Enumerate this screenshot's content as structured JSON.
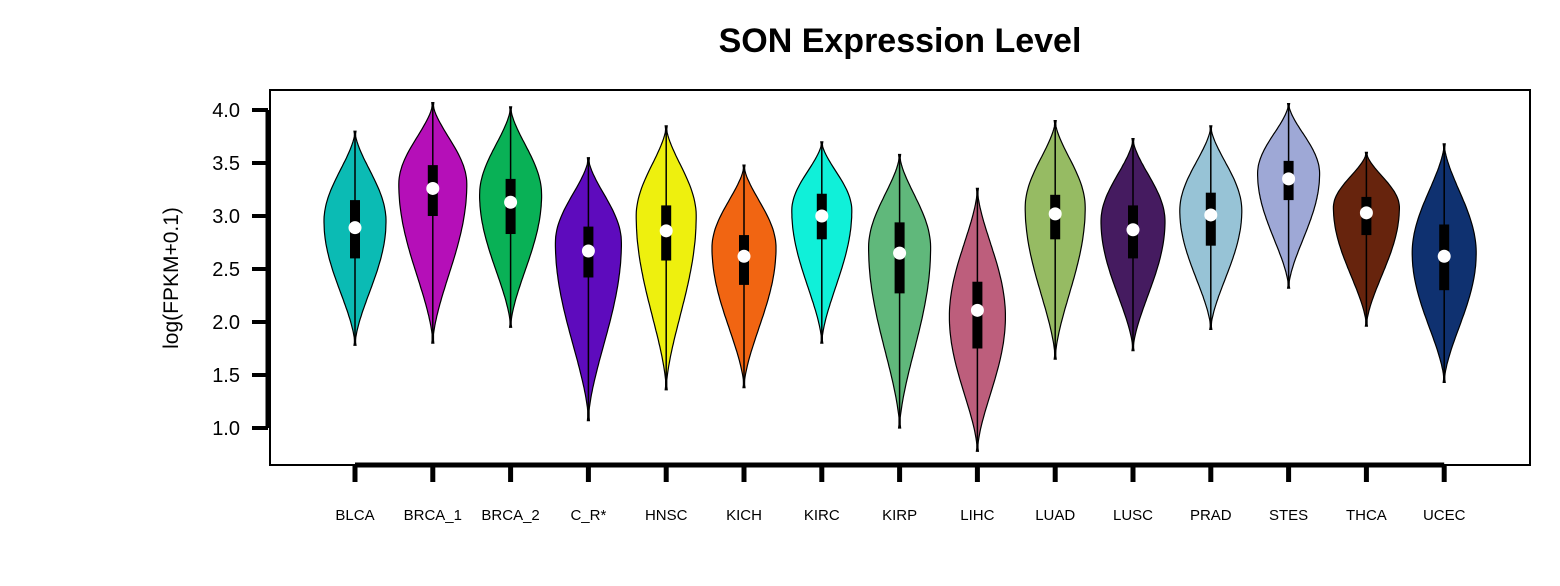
{
  "chart_data": {
    "type": "violin",
    "title": "SON Expression Level",
    "xlabel": "",
    "ylabel": "log(FPKM+0.1)",
    "ylim": [
      0.75,
      4.2
    ],
    "yticks": [
      "1.0",
      "1.5",
      "2.0",
      "2.5",
      "3.0",
      "3.5",
      "4.0"
    ],
    "grid": false,
    "legend": "none",
    "categories": [
      "BLCA",
      "BRCA_1",
      "BRCA_2",
      "C_R*",
      "HNSC",
      "KICH",
      "KIRC",
      "KIRP",
      "LIHC",
      "LUAD",
      "LUSC",
      "PRAD",
      "STES",
      "THCA",
      "UCEC"
    ],
    "series": [
      {
        "color": "#0bbbb4",
        "min": 1.78,
        "q1": 2.6,
        "median": 2.89,
        "q3": 3.15,
        "max": 3.8,
        "mode": 2.95,
        "maxWidth": 31
      },
      {
        "color": "#b50fb8",
        "min": 1.8,
        "q1": 3.0,
        "median": 3.26,
        "q3": 3.48,
        "max": 4.07,
        "mode": 3.3,
        "maxWidth": 34
      },
      {
        "color": "#09b156",
        "min": 1.95,
        "q1": 2.83,
        "median": 3.13,
        "q3": 3.35,
        "max": 4.03,
        "mode": 3.2,
        "maxWidth": 31
      },
      {
        "color": "#5e0bbd",
        "min": 1.07,
        "q1": 2.42,
        "median": 2.67,
        "q3": 2.9,
        "max": 3.55,
        "mode": 2.75,
        "maxWidth": 33
      },
      {
        "color": "#eef00e",
        "min": 1.36,
        "q1": 2.58,
        "median": 2.86,
        "q3": 3.1,
        "max": 3.85,
        "mode": 3.0,
        "maxWidth": 30
      },
      {
        "color": "#f16512",
        "min": 1.38,
        "q1": 2.35,
        "median": 2.62,
        "q3": 2.82,
        "max": 3.48,
        "mode": 2.7,
        "maxWidth": 32
      },
      {
        "color": "#10f0d9",
        "min": 1.8,
        "q1": 2.78,
        "median": 3.0,
        "q3": 3.21,
        "max": 3.7,
        "mode": 3.05,
        "maxWidth": 30
      },
      {
        "color": "#60b87b",
        "min": 1.0,
        "q1": 2.27,
        "median": 2.65,
        "q3": 2.94,
        "max": 3.58,
        "mode": 2.7,
        "maxWidth": 31
      },
      {
        "color": "#bd5e7c",
        "min": 0.78,
        "q1": 1.75,
        "median": 2.11,
        "q3": 2.38,
        "max": 3.26,
        "mode": 2.05,
        "maxWidth": 28
      },
      {
        "color": "#96bb63",
        "min": 1.65,
        "q1": 2.78,
        "median": 3.02,
        "q3": 3.2,
        "max": 3.9,
        "mode": 3.08,
        "maxWidth": 30
      },
      {
        "color": "#451b60",
        "min": 1.73,
        "q1": 2.6,
        "median": 2.87,
        "q3": 3.1,
        "max": 3.73,
        "mode": 2.95,
        "maxWidth": 32
      },
      {
        "color": "#97c3d6",
        "min": 1.93,
        "q1": 2.72,
        "median": 3.01,
        "q3": 3.22,
        "max": 3.85,
        "mode": 3.05,
        "maxWidth": 31
      },
      {
        "color": "#9ea8d6",
        "min": 2.32,
        "q1": 3.15,
        "median": 3.35,
        "q3": 3.52,
        "max": 4.06,
        "mode": 3.4,
        "maxWidth": 31
      },
      {
        "color": "#67240d",
        "min": 1.96,
        "q1": 2.82,
        "median": 3.03,
        "q3": 3.18,
        "max": 3.6,
        "mode": 3.08,
        "maxWidth": 33
      },
      {
        "color": "#0f3170",
        "min": 1.43,
        "q1": 2.3,
        "median": 2.62,
        "q3": 2.92,
        "max": 3.68,
        "mode": 2.65,
        "maxWidth": 32
      }
    ]
  }
}
